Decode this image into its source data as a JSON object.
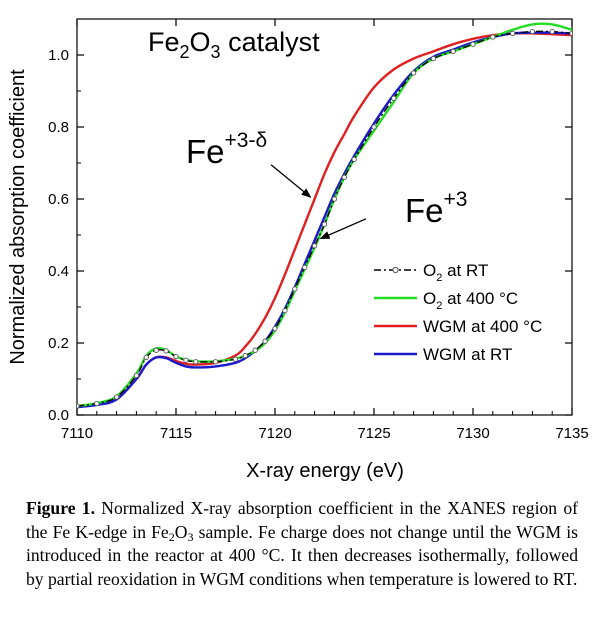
{
  "chart_data": {
    "type": "line",
    "title_parts": [
      "Fe",
      "2",
      "O",
      "3",
      " catalyst"
    ],
    "xlabel": "X-ray energy (eV)",
    "ylabel": "Normalized absorption coefficient",
    "xlim": [
      7110,
      7135
    ],
    "ylim": [
      0.0,
      1.1
    ],
    "x_ticks": [
      7110,
      7115,
      7120,
      7125,
      7130,
      7135
    ],
    "y_ticks": [
      0.0,
      0.2,
      0.4,
      0.6,
      0.8,
      1.0
    ],
    "y_tick_labels": [
      "0.0",
      "0.2",
      "0.4",
      "0.6",
      "0.8",
      "1.0"
    ],
    "legend_position": "center-right",
    "series": [
      {
        "name": "O2 at RT",
        "legend_parts": [
          "O",
          "2",
          " at RT"
        ],
        "color": "#000000",
        "style": "dash-dot with open circles",
        "x": [
          7110,
          7111,
          7112,
          7113,
          7113.5,
          7114,
          7114.5,
          7115,
          7115.5,
          7116,
          7117,
          7118,
          7118.5,
          7119,
          7119.5,
          7120,
          7120.5,
          7121,
          7121.5,
          7122,
          7122.5,
          7123,
          7123.5,
          7124,
          7125,
          7126,
          7127,
          7128,
          7129,
          7130,
          7131,
          7132,
          7133,
          7134,
          7135
        ],
        "y": [
          0.025,
          0.032,
          0.05,
          0.11,
          0.16,
          0.18,
          0.178,
          0.162,
          0.152,
          0.148,
          0.148,
          0.155,
          0.165,
          0.18,
          0.205,
          0.24,
          0.29,
          0.35,
          0.41,
          0.47,
          0.53,
          0.6,
          0.66,
          0.71,
          0.8,
          0.88,
          0.95,
          0.99,
          1.01,
          1.03,
          1.05,
          1.06,
          1.065,
          1.065,
          1.06
        ]
      },
      {
        "name": "O2 at 400 °C",
        "legend_parts": [
          "O",
          "2",
          " at 400 °C"
        ],
        "color": "#22dd22",
        "style": "solid",
        "x": [
          7110,
          7111,
          7112,
          7113,
          7113.5,
          7114,
          7114.5,
          7115,
          7115.5,
          7116,
          7117,
          7118,
          7118.5,
          7119,
          7119.5,
          7120,
          7120.5,
          7121,
          7121.5,
          7122,
          7122.5,
          7123,
          7123.5,
          7124,
          7125,
          7126,
          7127,
          7128,
          7129,
          7130,
          7131,
          7132,
          7133,
          7134,
          7135
        ],
        "y": [
          0.025,
          0.033,
          0.052,
          0.115,
          0.165,
          0.185,
          0.18,
          0.163,
          0.153,
          0.149,
          0.149,
          0.156,
          0.165,
          0.178,
          0.2,
          0.235,
          0.285,
          0.345,
          0.405,
          0.465,
          0.53,
          0.6,
          0.66,
          0.71,
          0.79,
          0.87,
          0.95,
          0.99,
          1.01,
          1.03,
          1.05,
          1.07,
          1.085,
          1.085,
          1.07
        ]
      },
      {
        "name": "WGM at 400 °C",
        "legend_parts": [
          "WGM at 400 °C"
        ],
        "color": "#e02020",
        "style": "solid",
        "x": [
          7110,
          7111,
          7112,
          7113,
          7113.5,
          7114,
          7114.5,
          7115,
          7115.5,
          7116,
          7117,
          7118,
          7118.5,
          7119,
          7119.5,
          7120,
          7120.5,
          7121,
          7121.5,
          7122,
          7122.5,
          7123,
          7123.5,
          7124,
          7125,
          7126,
          7127,
          7128,
          7129,
          7130,
          7131,
          7132,
          7133,
          7134,
          7135
        ],
        "y": [
          0.025,
          0.03,
          0.045,
          0.1,
          0.14,
          0.16,
          0.16,
          0.15,
          0.142,
          0.14,
          0.145,
          0.165,
          0.19,
          0.225,
          0.27,
          0.325,
          0.39,
          0.46,
          0.53,
          0.6,
          0.67,
          0.73,
          0.78,
          0.83,
          0.91,
          0.96,
          0.99,
          1.01,
          1.03,
          1.045,
          1.055,
          1.06,
          1.06,
          1.058,
          1.055
        ]
      },
      {
        "name": "WGM at RT",
        "legend_parts": [
          "WGM at RT"
        ],
        "color": "#1a1acc",
        "style": "solid",
        "x": [
          7110,
          7111,
          7112,
          7113,
          7113.5,
          7114,
          7114.5,
          7115,
          7115.5,
          7116,
          7117,
          7118,
          7118.5,
          7119,
          7119.5,
          7120,
          7120.5,
          7121,
          7121.5,
          7122,
          7122.5,
          7123,
          7123.5,
          7124,
          7125,
          7126,
          7127,
          7128,
          7129,
          7130,
          7131,
          7132,
          7133,
          7134,
          7135
        ],
        "y": [
          0.022,
          0.028,
          0.043,
          0.1,
          0.14,
          0.16,
          0.158,
          0.145,
          0.135,
          0.132,
          0.135,
          0.145,
          0.158,
          0.178,
          0.205,
          0.245,
          0.295,
          0.355,
          0.42,
          0.485,
          0.55,
          0.615,
          0.67,
          0.72,
          0.81,
          0.89,
          0.955,
          0.995,
          1.015,
          1.035,
          1.05,
          1.06,
          1.062,
          1.062,
          1.06
        ]
      }
    ],
    "annotations": [
      {
        "base": "Fe",
        "superscript": "+3-δ",
        "arrow_from": [
          7119.8,
          0.695
        ],
        "arrow_to": [
          7121.8,
          0.605
        ]
      },
      {
        "base": "Fe",
        "superscript": "+3",
        "arrow_from": [
          7124.6,
          0.545
        ],
        "arrow_to": [
          7122.3,
          0.49
        ]
      }
    ]
  },
  "caption": {
    "label": "Figure 1.",
    "text_parts": [
      " Normalized X-ray absorption coefficient in the XANES region of the Fe K-edge in Fe",
      "2",
      "O",
      "3",
      " sample. Fe charge does not change until the WGM is introduced in the reactor at 400 °C. It then decreases isothermally, followed by partial reoxidation in WGM conditions when temperature is lowered to RT."
    ]
  }
}
